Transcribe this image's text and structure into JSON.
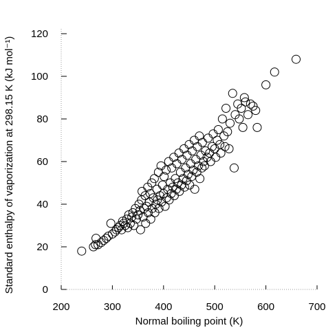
{
  "chart_data": {
    "type": "scatter",
    "x_label": "Normal boiling point (K)",
    "y_label": "Standard enthalpy of vaporization at 298.15 K (kJ mol⁻¹)",
    "x": [
      240,
      263,
      267,
      268,
      272,
      278,
      283,
      288,
      292,
      297,
      300,
      305,
      308,
      312,
      315,
      318,
      320,
      322,
      325,
      328,
      330,
      332,
      335,
      338,
      340,
      342,
      345,
      347,
      350,
      352,
      354,
      355,
      357,
      358,
      360,
      362,
      364,
      365,
      367,
      369,
      370,
      372,
      374,
      375,
      377,
      378,
      380,
      382,
      383,
      385,
      387,
      388,
      390,
      391,
      393,
      395,
      396,
      398,
      400,
      401,
      403,
      405,
      406,
      408,
      410,
      411,
      413,
      415,
      416,
      418,
      420,
      421,
      423,
      425,
      426,
      428,
      430,
      431,
      433,
      435,
      436,
      438,
      440,
      441,
      443,
      445,
      446,
      448,
      450,
      451,
      453,
      455,
      456,
      458,
      460,
      461,
      463,
      465,
      466,
      468,
      470,
      471,
      473,
      475,
      476,
      478,
      480,
      482,
      485,
      487,
      490,
      492,
      495,
      497,
      500,
      502,
      505,
      507,
      510,
      512,
      515,
      518,
      520,
      522,
      525,
      528,
      530,
      535,
      538,
      540,
      545,
      548,
      552,
      555,
      558,
      560,
      565,
      570,
      575,
      580,
      583,
      600,
      617,
      659
    ],
    "values": [
      18,
      20,
      21,
      24,
      21,
      22,
      23,
      24,
      25,
      31,
      26,
      27,
      28,
      29,
      30,
      28,
      32,
      31,
      30,
      33,
      29,
      35,
      31,
      34,
      36,
      30,
      38,
      33,
      35,
      40,
      37,
      28,
      42,
      46,
      34,
      38,
      44,
      31,
      39,
      48,
      36,
      41,
      45,
      33,
      50,
      38,
      43,
      52,
      36,
      40,
      47,
      42,
      55,
      38,
      44,
      58,
      41,
      49,
      45,
      53,
      39,
      56,
      43,
      47,
      60,
      42,
      50,
      45,
      57,
      48,
      62,
      44,
      52,
      47,
      59,
      50,
      64,
      46,
      55,
      49,
      61,
      52,
      66,
      48,
      57,
      51,
      63,
      54,
      68,
      49,
      59,
      53,
      65,
      56,
      70,
      47,
      61,
      55,
      67,
      58,
      72,
      52,
      63,
      57,
      69,
      60,
      58,
      65,
      62,
      71,
      64,
      60,
      67,
      73,
      66,
      62,
      70,
      75,
      68,
      64,
      80,
      72,
      67,
      85,
      74,
      66,
      78,
      92,
      57,
      82,
      87,
      80,
      85,
      76,
      90,
      88,
      82,
      87,
      86,
      84,
      76,
      96,
      102,
      108
    ],
    "color": "#000000",
    "xlim": [
      200,
      700
    ],
    "xticks": [
      200,
      300,
      400,
      500,
      600,
      700
    ],
    "ylim": [
      0,
      120
    ],
    "yticks": [
      0,
      20,
      40,
      60,
      80,
      100,
      120
    ]
  }
}
